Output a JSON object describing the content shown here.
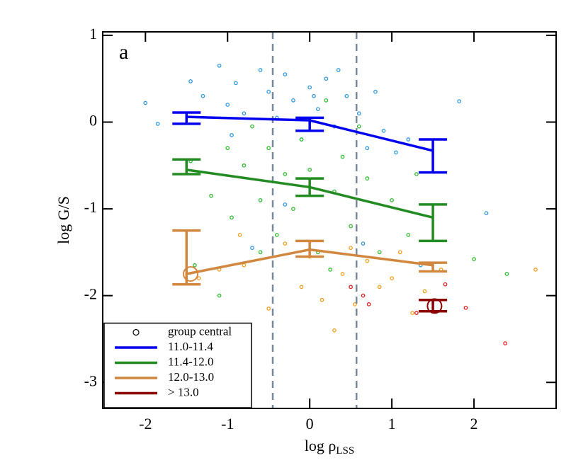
{
  "chart_data": {
    "type": "scatter",
    "ylabel": "log G/S",
    "xlabel": "log ρ",
    "xlabel_sub": "LSS",
    "panel_label": "a",
    "xlim": [
      -2.52,
      3.0
    ],
    "ylim": [
      -3.3,
      1.04
    ],
    "xticks": [
      -2,
      -1,
      0,
      1,
      2
    ],
    "yticks": [
      1,
      0,
      -1,
      -2,
      -3
    ],
    "vlines": [
      -0.45,
      0.57
    ],
    "legend": "lower left",
    "scatter": [
      {
        "color": "#3399dd",
        "x": [
          -2.0,
          -1.85,
          -1.45,
          -1.3,
          -1.1,
          -1.0,
          -0.9,
          -0.8,
          -0.6,
          -0.5,
          -0.4,
          -0.3,
          -0.2,
          -0.1,
          0.0,
          0.1,
          0.2,
          0.3,
          0.45,
          0.6,
          0.7,
          0.8,
          0.9,
          1.05,
          1.2,
          1.82,
          2.15,
          -0.7,
          -0.3,
          0.65,
          1.35,
          0.05,
          -0.95,
          0.35
        ],
        "y": [
          0.22,
          -0.02,
          0.47,
          0.3,
          0.65,
          0.2,
          0.45,
          0.1,
          0.6,
          0.35,
          0.05,
          0.55,
          0.25,
          -0.2,
          0.4,
          0.15,
          0.5,
          -0.05,
          0.3,
          0.1,
          -0.3,
          0.35,
          -0.1,
          -0.35,
          -0.2,
          0.24,
          -1.05,
          -1.45,
          -0.95,
          -1.4,
          -1.65,
          0.3,
          -0.15,
          0.6
        ]
      },
      {
        "color": "#33bb33",
        "x": [
          -1.45,
          -1.2,
          -1.0,
          -0.95,
          -0.8,
          -0.7,
          -0.6,
          -0.5,
          -0.4,
          -0.3,
          -0.2,
          -0.1,
          0.0,
          0.1,
          0.2,
          0.3,
          0.4,
          0.5,
          0.6,
          0.7,
          0.85,
          1.0,
          1.2,
          1.3,
          -1.4,
          -1.1,
          2.0,
          2.4,
          -0.6,
          0.25
        ],
        "y": [
          -0.45,
          -0.85,
          -0.3,
          -1.1,
          -0.5,
          -0.05,
          -0.9,
          -0.3,
          -1.3,
          -0.6,
          -1.0,
          -0.2,
          -0.55,
          -1.5,
          0.25,
          -0.8,
          -0.4,
          -1.2,
          -0.05,
          -0.65,
          -1.5,
          -0.9,
          -1.3,
          -0.6,
          -1.65,
          -2.0,
          -1.58,
          -1.75,
          -1.5,
          -1.7
        ]
      },
      {
        "color": "#f0a020",
        "x": [
          -1.35,
          -1.1,
          -0.8,
          -0.5,
          -0.3,
          -0.1,
          0.0,
          0.15,
          0.3,
          0.4,
          0.55,
          0.7,
          0.85,
          1.0,
          1.1,
          1.25,
          1.4,
          1.6,
          2.75,
          0.5,
          -0.85
        ],
        "y": [
          -1.8,
          -1.7,
          -1.65,
          -2.15,
          -1.4,
          -1.9,
          -1.55,
          -2.05,
          -2.4,
          -1.75,
          -2.1,
          -1.6,
          -1.9,
          -1.8,
          -1.5,
          -2.2,
          -1.95,
          -1.7,
          -1.7,
          -1.45,
          -1.3
        ]
      },
      {
        "color": "#dd2222",
        "x": [
          0.5,
          0.65,
          0.72,
          1.3,
          1.65,
          1.9,
          2.38
        ],
        "y": [
          -1.9,
          -2.0,
          -2.1,
          -2.2,
          -1.87,
          -2.14,
          -2.55
        ]
      }
    ],
    "series": [
      {
        "name": "11.0-11.4",
        "color": "#0000ee",
        "x": [
          -1.5,
          0.0,
          1.5
        ],
        "values": [
          0.06,
          0.02,
          -0.33
        ],
        "lower": [
          -0.02,
          -0.1,
          -0.58
        ],
        "upper": [
          0.11,
          0.05,
          -0.2
        ]
      },
      {
        "name": "11.4-12.0",
        "color": "#228b22",
        "x": [
          -1.5,
          0.0,
          1.5
        ],
        "values": [
          -0.55,
          -0.75,
          -1.1
        ],
        "lower": [
          -0.6,
          -0.85,
          -1.37
        ],
        "upper": [
          -0.43,
          -0.65,
          -0.95
        ]
      },
      {
        "name": "12.0-13.0",
        "color": "#d2873f",
        "x": [
          -1.5,
          0.0,
          1.5
        ],
        "values": [
          -1.75,
          -1.47,
          -1.65
        ],
        "lower": [
          -1.87,
          -1.55,
          -1.72
        ],
        "upper": [
          -1.25,
          -1.37,
          -1.62
        ]
      },
      {
        "name": "> 13.0",
        "color": "#8b0000",
        "x": [
          1.5
        ],
        "values": [
          -2.12
        ],
        "lower": [
          -2.18
        ],
        "upper": [
          -2.05
        ]
      }
    ],
    "group_central": {
      "name": "group central",
      "x": [
        -1.45,
        1.52
      ],
      "y": [
        -1.75,
        -2.12
      ],
      "colors": [
        "#d2873f",
        "#8b0000"
      ]
    }
  }
}
